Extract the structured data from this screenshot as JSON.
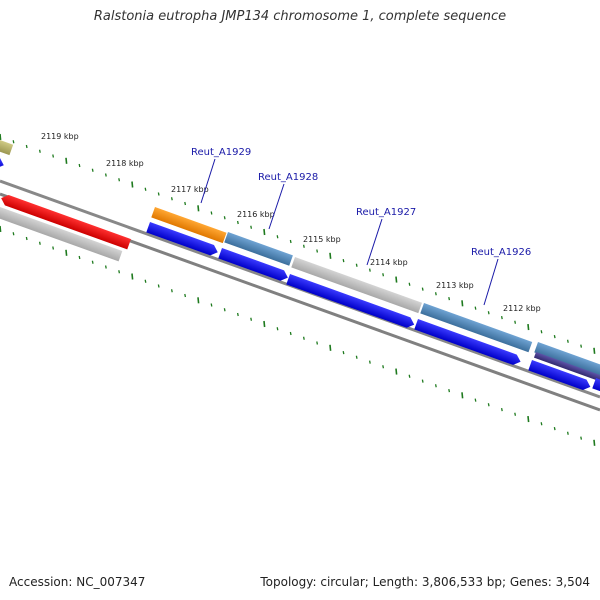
{
  "title": "Ralstonia eutropha JMP134 chromosome 1, complete sequence",
  "footer": {
    "accession": "Accession: NC_007347",
    "topology": "Topology: circular; Length: 3,806,533 bp; Genes: 3,504"
  },
  "scale_labels": [
    "2119 kbp",
    "2118 kbp",
    "2117 kbp",
    "2116 kbp",
    "2115 kbp",
    "2114 kbp",
    "2113 kbp",
    "2112 kbp"
  ],
  "gene_labels": [
    "Reut_A1929",
    "Reut_A1928",
    "Reut_A1927",
    "Reut_A1926"
  ],
  "colors": {
    "backbone": "#808080",
    "tick": "#1e7a1e",
    "gene_blue": "#0000ee",
    "gene_steel": "#4682b4",
    "gene_grey": "#bdbdbd",
    "gene_red": "#ee0000",
    "gene_orange": "#ff8c00",
    "gene_olive": "#b5b06a",
    "gene_purple": "#483d8b"
  }
}
